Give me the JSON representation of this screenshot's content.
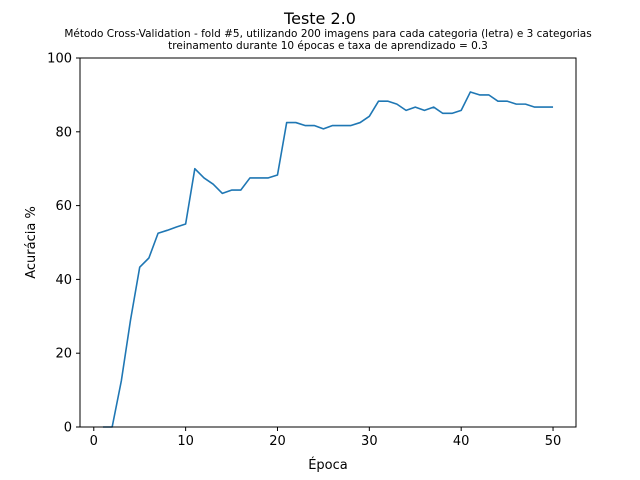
{
  "chart_data": {
    "type": "line",
    "title": "Teste 2.0",
    "subtitle_lines": [
      "Método Cross-Validation - fold #5, utilizando 200 imagens para cada categoria (letra) e 3 categorias",
      "treinamento durante 10 épocas e taxa de aprendizado = 0.3"
    ],
    "xlabel": "Época",
    "ylabel": "Acurácia %",
    "xlim": [
      -1.5,
      52.5
    ],
    "ylim": [
      0,
      100
    ],
    "xticks": [
      0,
      10,
      20,
      30,
      40,
      50
    ],
    "yticks": [
      0,
      20,
      40,
      60,
      80,
      100
    ],
    "grid": false,
    "line_color": "#1f77b4",
    "series": [
      {
        "x": [
          1,
          2,
          3,
          4,
          5,
          6,
          7,
          8,
          9,
          10,
          11,
          12,
          13,
          14,
          15,
          16,
          17,
          18,
          19,
          20,
          21,
          22,
          23,
          24,
          25,
          26,
          27,
          28,
          29,
          30,
          31,
          32,
          33,
          34,
          35,
          36,
          37,
          38,
          39,
          40,
          41,
          42,
          43,
          44,
          45,
          46,
          47,
          48,
          49,
          50
        ],
        "values": [
          0,
          0,
          12.5,
          29,
          43.3,
          45.8,
          52.5,
          53.3,
          54.2,
          55,
          70,
          67.5,
          65.8,
          63.3,
          64.2,
          64.2,
          67.5,
          67.5,
          67.5,
          68.3,
          82.5,
          82.5,
          81.7,
          81.7,
          80.8,
          81.7,
          81.7,
          81.7,
          82.5,
          84.2,
          88.3,
          88.3,
          87.5,
          85.8,
          86.7,
          85.8,
          86.7,
          85,
          85,
          85.8,
          90.8,
          90,
          90,
          88.3,
          88.3,
          87.5,
          87.5,
          86.7,
          86.7,
          86.7
        ]
      }
    ]
  }
}
